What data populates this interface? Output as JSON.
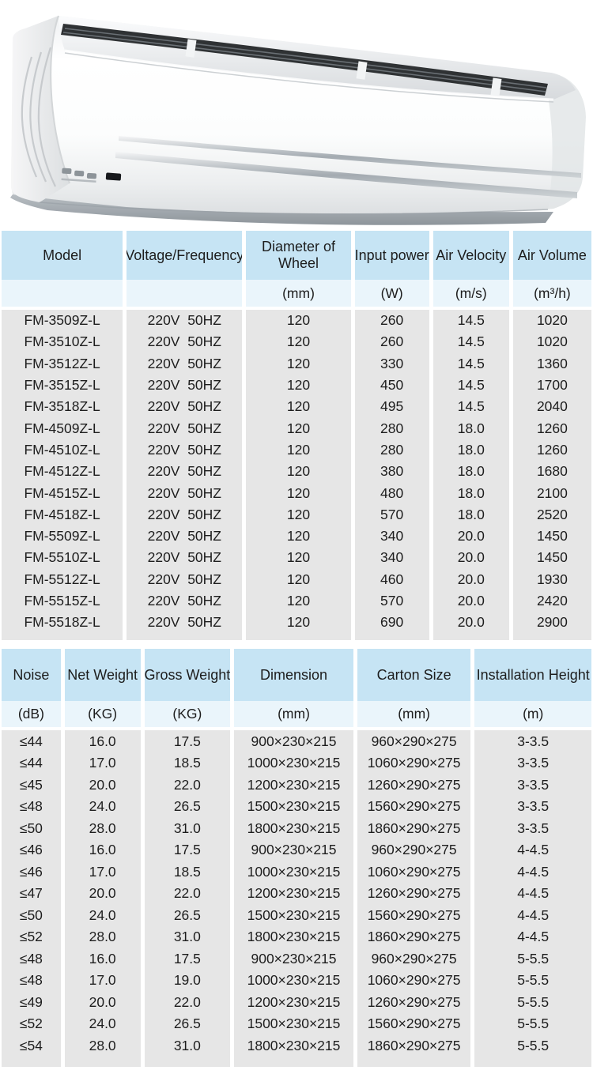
{
  "product_photo": {
    "name": "air-curtain-unit"
  },
  "colors": {
    "header_blue": "#c6e4f4",
    "units_blue": "#eaf5fb",
    "row_gray": "#e6e6e6"
  },
  "spec_table": {
    "columns": [
      "Model",
      "Voltage/Frequency",
      "Diameter of Wheel",
      "Input power",
      "Air Velocity",
      "Air Volume"
    ],
    "units": [
      "",
      "",
      "(mm)",
      "(W)",
      "(m/s)",
      "(m³/h)"
    ],
    "rows": [
      [
        "FM-3509Z-L",
        "220V  50HZ",
        "120",
        "260",
        "14.5",
        "1020"
      ],
      [
        "FM-3510Z-L",
        "220V  50HZ",
        "120",
        "260",
        "14.5",
        "1020"
      ],
      [
        "FM-3512Z-L",
        "220V  50HZ",
        "120",
        "330",
        "14.5",
        "1360"
      ],
      [
        "FM-3515Z-L",
        "220V  50HZ",
        "120",
        "450",
        "14.5",
        "1700"
      ],
      [
        "FM-3518Z-L",
        "220V  50HZ",
        "120",
        "495",
        "14.5",
        "2040"
      ],
      [
        "FM-4509Z-L",
        "220V  50HZ",
        "120",
        "280",
        "18.0",
        "1260"
      ],
      [
        "FM-4510Z-L",
        "220V  50HZ",
        "120",
        "280",
        "18.0",
        "1260"
      ],
      [
        "FM-4512Z-L",
        "220V  50HZ",
        "120",
        "380",
        "18.0",
        "1680"
      ],
      [
        "FM-4515Z-L",
        "220V  50HZ",
        "120",
        "480",
        "18.0",
        "2100"
      ],
      [
        "FM-4518Z-L",
        "220V  50HZ",
        "120",
        "570",
        "18.0",
        "2520"
      ],
      [
        "FM-5509Z-L",
        "220V  50HZ",
        "120",
        "340",
        "20.0",
        "1450"
      ],
      [
        "FM-5510Z-L",
        "220V  50HZ",
        "120",
        "340",
        "20.0",
        "1450"
      ],
      [
        "FM-5512Z-L",
        "220V  50HZ",
        "120",
        "460",
        "20.0",
        "1930"
      ],
      [
        "FM-5515Z-L",
        "220V  50HZ",
        "120",
        "570",
        "20.0",
        "2420"
      ],
      [
        "FM-5518Z-L",
        "220V  50HZ",
        "120",
        "690",
        "20.0",
        "2900"
      ]
    ]
  },
  "weight_table": {
    "columns": [
      "Noise",
      "Net Weight",
      "Gross Weight",
      "Dimension",
      "Carton Size",
      "Installation Height"
    ],
    "units": [
      "(dB)",
      "(KG)",
      "(KG)",
      "(mm)",
      "(mm)",
      "(m)"
    ],
    "rows": [
      [
        "≤44",
        "16.0",
        "17.5",
        "900×230×215",
        "960×290×275",
        "3-3.5"
      ],
      [
        "≤44",
        "17.0",
        "18.5",
        "1000×230×215",
        "1060×290×275",
        "3-3.5"
      ],
      [
        "≤45",
        "20.0",
        "22.0",
        "1200×230×215",
        "1260×290×275",
        "3-3.5"
      ],
      [
        "≤48",
        "24.0",
        "26.5",
        "1500×230×215",
        "1560×290×275",
        "3-3.5"
      ],
      [
        "≤50",
        "28.0",
        "31.0",
        "1800×230×215",
        "1860×290×275",
        "3-3.5"
      ],
      [
        "≤46",
        "16.0",
        "17.5",
        "900×230×215",
        "960×290×275",
        "4-4.5"
      ],
      [
        "≤46",
        "17.0",
        "18.5",
        "1000×230×215",
        "1060×290×275",
        "4-4.5"
      ],
      [
        "≤47",
        "20.0",
        "22.0",
        "1200×230×215",
        "1260×290×275",
        "4-4.5"
      ],
      [
        "≤50",
        "24.0",
        "26.5",
        "1500×230×215",
        "1560×290×275",
        "4-4.5"
      ],
      [
        "≤52",
        "28.0",
        "31.0",
        "1800×230×215",
        "1860×290×275",
        "4-4.5"
      ],
      [
        "≤48",
        "16.0",
        "17.5",
        "900×230×215",
        "960×290×275",
        "5-5.5"
      ],
      [
        "≤48",
        "17.0",
        "19.0",
        "1000×230×215",
        "1060×290×275",
        "5-5.5"
      ],
      [
        "≤49",
        "20.0",
        "22.0",
        "1200×230×215",
        "1260×290×275",
        "5-5.5"
      ],
      [
        "≤52",
        "24.0",
        "26.5",
        "1500×230×215",
        "1560×290×275",
        "5-5.5"
      ],
      [
        "≤54",
        "28.0",
        "31.0",
        "1800×230×215",
        "1860×290×275",
        "5-5.5"
      ]
    ]
  }
}
